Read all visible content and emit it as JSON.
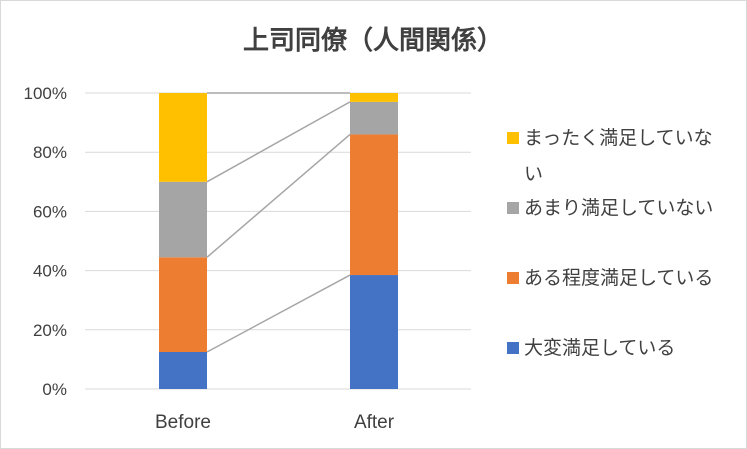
{
  "chart_data": {
    "type": "bar",
    "stacked": true,
    "percent": true,
    "title": "上司同僚（人間関係）",
    "xlabel": "",
    "ylabel": "",
    "ylim": [
      0,
      100
    ],
    "yticks": [
      "0%",
      "20%",
      "40%",
      "60%",
      "80%",
      "100%"
    ],
    "categories": [
      "Before",
      "After"
    ],
    "series": [
      {
        "name": "大変満足している",
        "color": "#4472c4",
        "values": [
          12.5,
          38.5
        ]
      },
      {
        "name": "ある程度満足している",
        "color": "#ed7d31",
        "values": [
          32,
          47.5
        ]
      },
      {
        "name": "あまり満足していない",
        "color": "#a5a5a5",
        "values": [
          25.5,
          11
        ]
      },
      {
        "name": "まったく満足していない",
        "color": "#ffc000",
        "values": [
          30,
          3
        ]
      }
    ],
    "series_lines": true,
    "grid": true,
    "legend_position": "right"
  }
}
